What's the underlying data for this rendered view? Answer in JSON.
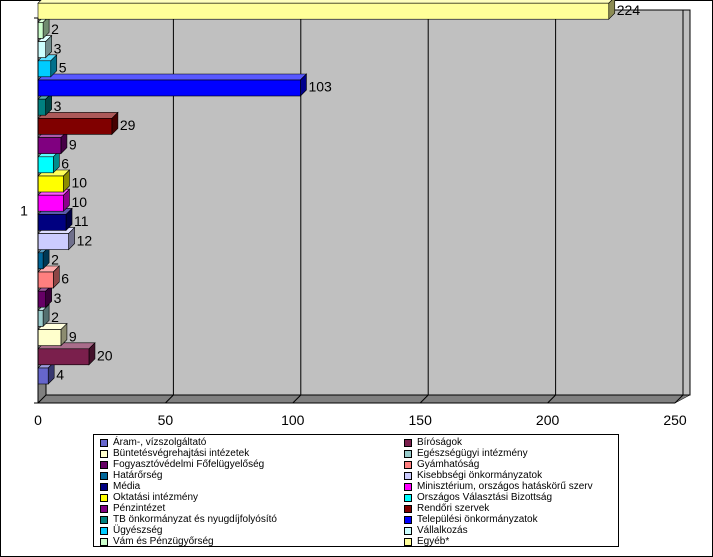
{
  "chart_data": {
    "type": "bar",
    "orientation": "horizontal",
    "title": "",
    "xlabel": "",
    "ylabel": "",
    "categories": [
      "1"
    ],
    "xlim": [
      0,
      250
    ],
    "xticks": [
      0,
      50,
      100,
      150,
      200,
      250
    ],
    "grid": true,
    "legend_position": "bottom",
    "series": [
      {
        "name": "Áram-, vízszolgáltató",
        "value": 4,
        "label": "4",
        "color": "#6666cc"
      },
      {
        "name": "Bíróságok",
        "value": 20,
        "label": "20",
        "color": "#7a1f4c"
      },
      {
        "name": "Büntetésvégrehajtási intézetek",
        "value": 9,
        "label": "9",
        "color": "#ffffcc"
      },
      {
        "name": "Egészségügyi intézmény",
        "value": 2,
        "label": "2",
        "color": "#99cccc"
      },
      {
        "name": "Fogyasztóvédelmi Főfelügyelőség",
        "value": 3,
        "label": "3",
        "color": "#660066"
      },
      {
        "name": "Gyámhatóság",
        "value": 6,
        "label": "6",
        "color": "#ff7f7f"
      },
      {
        "name": "Határőrség",
        "value": 2,
        "label": "2",
        "color": "#006699"
      },
      {
        "name": "Kisebbségi önkormányzatok",
        "value": 12,
        "label": "12",
        "color": "#ccccff"
      },
      {
        "name": "Média",
        "value": 11,
        "label": "11",
        "color": "#000080"
      },
      {
        "name": "Minisztérium, országos hatáskörű szerv",
        "value": 10,
        "label": "10",
        "color": "#ff00ff"
      },
      {
        "name": "Oktatási intézmény",
        "value": 10,
        "label": "10",
        "color": "#ffff00"
      },
      {
        "name": "Országos Választási Bizottság",
        "value": 6,
        "label": "6",
        "color": "#00ffff"
      },
      {
        "name": "Pénzintézet",
        "value": 9,
        "label": "9",
        "color": "#800080"
      },
      {
        "name": "Rendőri szervek",
        "value": 29,
        "label": "29",
        "color": "#800000"
      },
      {
        "name": "TB önkormányzat és nyugdíjfolyósító",
        "value": 3,
        "label": "3",
        "color": "#008080"
      },
      {
        "name": "Települési önkormányzatok",
        "value": 103,
        "label": "103",
        "color": "#0000ff"
      },
      {
        "name": "Ügyészség",
        "value": 5,
        "label": "5",
        "color": "#00ccff"
      },
      {
        "name": "Vállalkozás",
        "value": 3,
        "label": "3",
        "color": "#ccffff"
      },
      {
        "name": "Vám és Pénzügyőrség",
        "value": 2,
        "label": "2",
        "color": "#ccffcc"
      },
      {
        "name": "Egyéb*",
        "value": 224,
        "label": "224",
        "color": "#ffff99"
      }
    ]
  }
}
